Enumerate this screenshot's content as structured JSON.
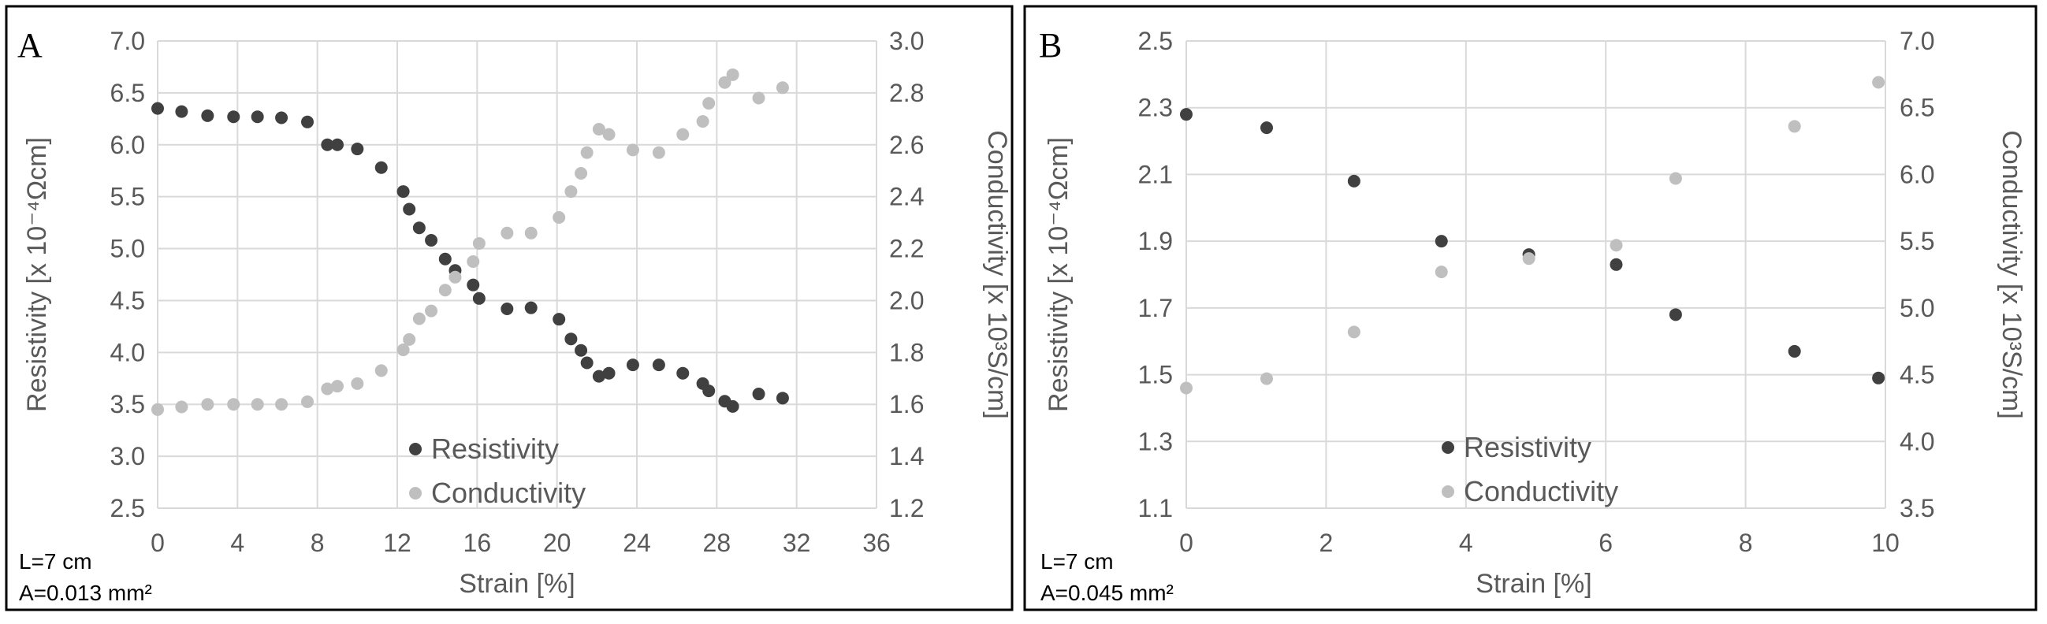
{
  "colors": {
    "resistivity": "#404040",
    "conductivity": "#BFBFBF",
    "grid": "#D9D9D9",
    "text": "#595959",
    "frame": "#000000"
  },
  "chart_data": [
    {
      "panel_label": "A",
      "type": "scatter",
      "xlabel": "Strain [%]",
      "ylabel": "Resistivity [x 10⁻⁴Ωcm]",
      "y2label": "Conductivity [x 10³S/cm]",
      "xlim": [
        0,
        36
      ],
      "xticks": [
        "0",
        "4",
        "8",
        "12",
        "16",
        "20",
        "24",
        "28",
        "32",
        "36"
      ],
      "ylim": [
        2.5,
        7.0
      ],
      "yticks": [
        "2.5",
        "3.0",
        "3.5",
        "4.0",
        "4.5",
        "5.0",
        "5.5",
        "6.0",
        "6.5",
        "7.0"
      ],
      "y2lim": [
        1.2,
        3.0
      ],
      "y2ticks": [
        "1.2",
        "1.4",
        "1.6",
        "1.8",
        "2.0",
        "2.2",
        "2.4",
        "2.6",
        "2.8",
        "3.0"
      ],
      "grid": true,
      "legend": {
        "position": "bottom-center",
        "entries": [
          "Resistivity",
          "Conductivity"
        ]
      },
      "notes": [
        "L=7 cm",
        "A=0.013 mm²"
      ],
      "series": [
        {
          "name": "Resistivity",
          "axis": "left",
          "x": [
            0,
            1.2,
            2.5,
            3.8,
            5,
            6.2,
            7.5,
            8.5,
            9,
            10,
            11.2,
            12.3,
            12.6,
            13.1,
            13.7,
            14.4,
            14.9,
            15.8,
            16.1,
            17.5,
            18.7,
            20.1,
            20.7,
            21.2,
            21.5,
            22.1,
            22.6,
            23.8,
            25.1,
            26.3,
            27.3,
            27.6,
            28.4,
            28.8,
            30.1,
            31.3
          ],
          "values": [
            6.35,
            6.32,
            6.28,
            6.27,
            6.27,
            6.26,
            6.22,
            6.0,
            6.0,
            5.96,
            5.78,
            5.55,
            5.38,
            5.2,
            5.08,
            4.9,
            4.79,
            4.65,
            4.52,
            4.42,
            4.43,
            4.32,
            4.13,
            4.02,
            3.9,
            3.77,
            3.8,
            3.88,
            3.88,
            3.8,
            3.7,
            3.63,
            3.53,
            3.48,
            3.6,
            3.56
          ]
        },
        {
          "name": "Conductivity",
          "axis": "right",
          "x": [
            0,
            1.2,
            2.5,
            3.8,
            5,
            6.2,
            7.5,
            8.5,
            9,
            10,
            11.2,
            12.3,
            12.6,
            13.1,
            13.7,
            14.4,
            14.9,
            15.8,
            16.1,
            17.5,
            18.7,
            20.1,
            20.7,
            21.2,
            21.5,
            22.1,
            22.6,
            23.8,
            25.1,
            26.3,
            27.3,
            27.6,
            28.4,
            28.8,
            30.1,
            31.3
          ],
          "values": [
            1.58,
            1.59,
            1.6,
            1.6,
            1.6,
            1.6,
            1.61,
            1.66,
            1.67,
            1.68,
            1.73,
            1.81,
            1.85,
            1.93,
            1.96,
            2.04,
            2.09,
            2.15,
            2.22,
            2.26,
            2.26,
            2.32,
            2.42,
            2.49,
            2.57,
            2.66,
            2.64,
            2.58,
            2.57,
            2.64,
            2.69,
            2.76,
            2.84,
            2.87,
            2.78,
            2.82
          ]
        }
      ]
    },
    {
      "panel_label": "B",
      "type": "scatter",
      "xlabel": "Strain [%]",
      "ylabel": "Resistivity [x 10⁻⁴Ωcm]",
      "y2label": "Conductivity [x 10³S/cm]",
      "xlim": [
        0,
        10
      ],
      "xticks": [
        "0",
        "2",
        "4",
        "6",
        "8",
        "10"
      ],
      "ylim": [
        1.1,
        2.5
      ],
      "yticks": [
        "1.1",
        "1.3",
        "1.5",
        "1.7",
        "1.9",
        "2.1",
        "2.3",
        "2.5"
      ],
      "y2lim": [
        3.5,
        7.0
      ],
      "y2ticks": [
        "3.5",
        "4.0",
        "4.5",
        "5.0",
        "5.5",
        "6.0",
        "6.5",
        "7.0"
      ],
      "grid": true,
      "legend": {
        "position": "bottom-center",
        "entries": [
          "Resistivity",
          "Conductivity"
        ]
      },
      "notes": [
        "L=7 cm",
        "A=0.045 mm²"
      ],
      "series": [
        {
          "name": "Resistivity",
          "axis": "left",
          "x": [
            0,
            1.15,
            2.4,
            3.65,
            4.9,
            6.15,
            7,
            8.7,
            9.9
          ],
          "values": [
            2.28,
            2.24,
            2.08,
            1.9,
            1.86,
            1.83,
            1.68,
            1.57,
            1.49
          ]
        },
        {
          "name": "Conductivity",
          "axis": "right",
          "x": [
            0,
            1.15,
            2.4,
            3.65,
            4.9,
            6.15,
            7,
            8.7,
            9.9
          ],
          "values": [
            4.4,
            4.47,
            4.82,
            5.27,
            5.37,
            5.47,
            5.97,
            6.36,
            6.69
          ]
        }
      ]
    }
  ]
}
